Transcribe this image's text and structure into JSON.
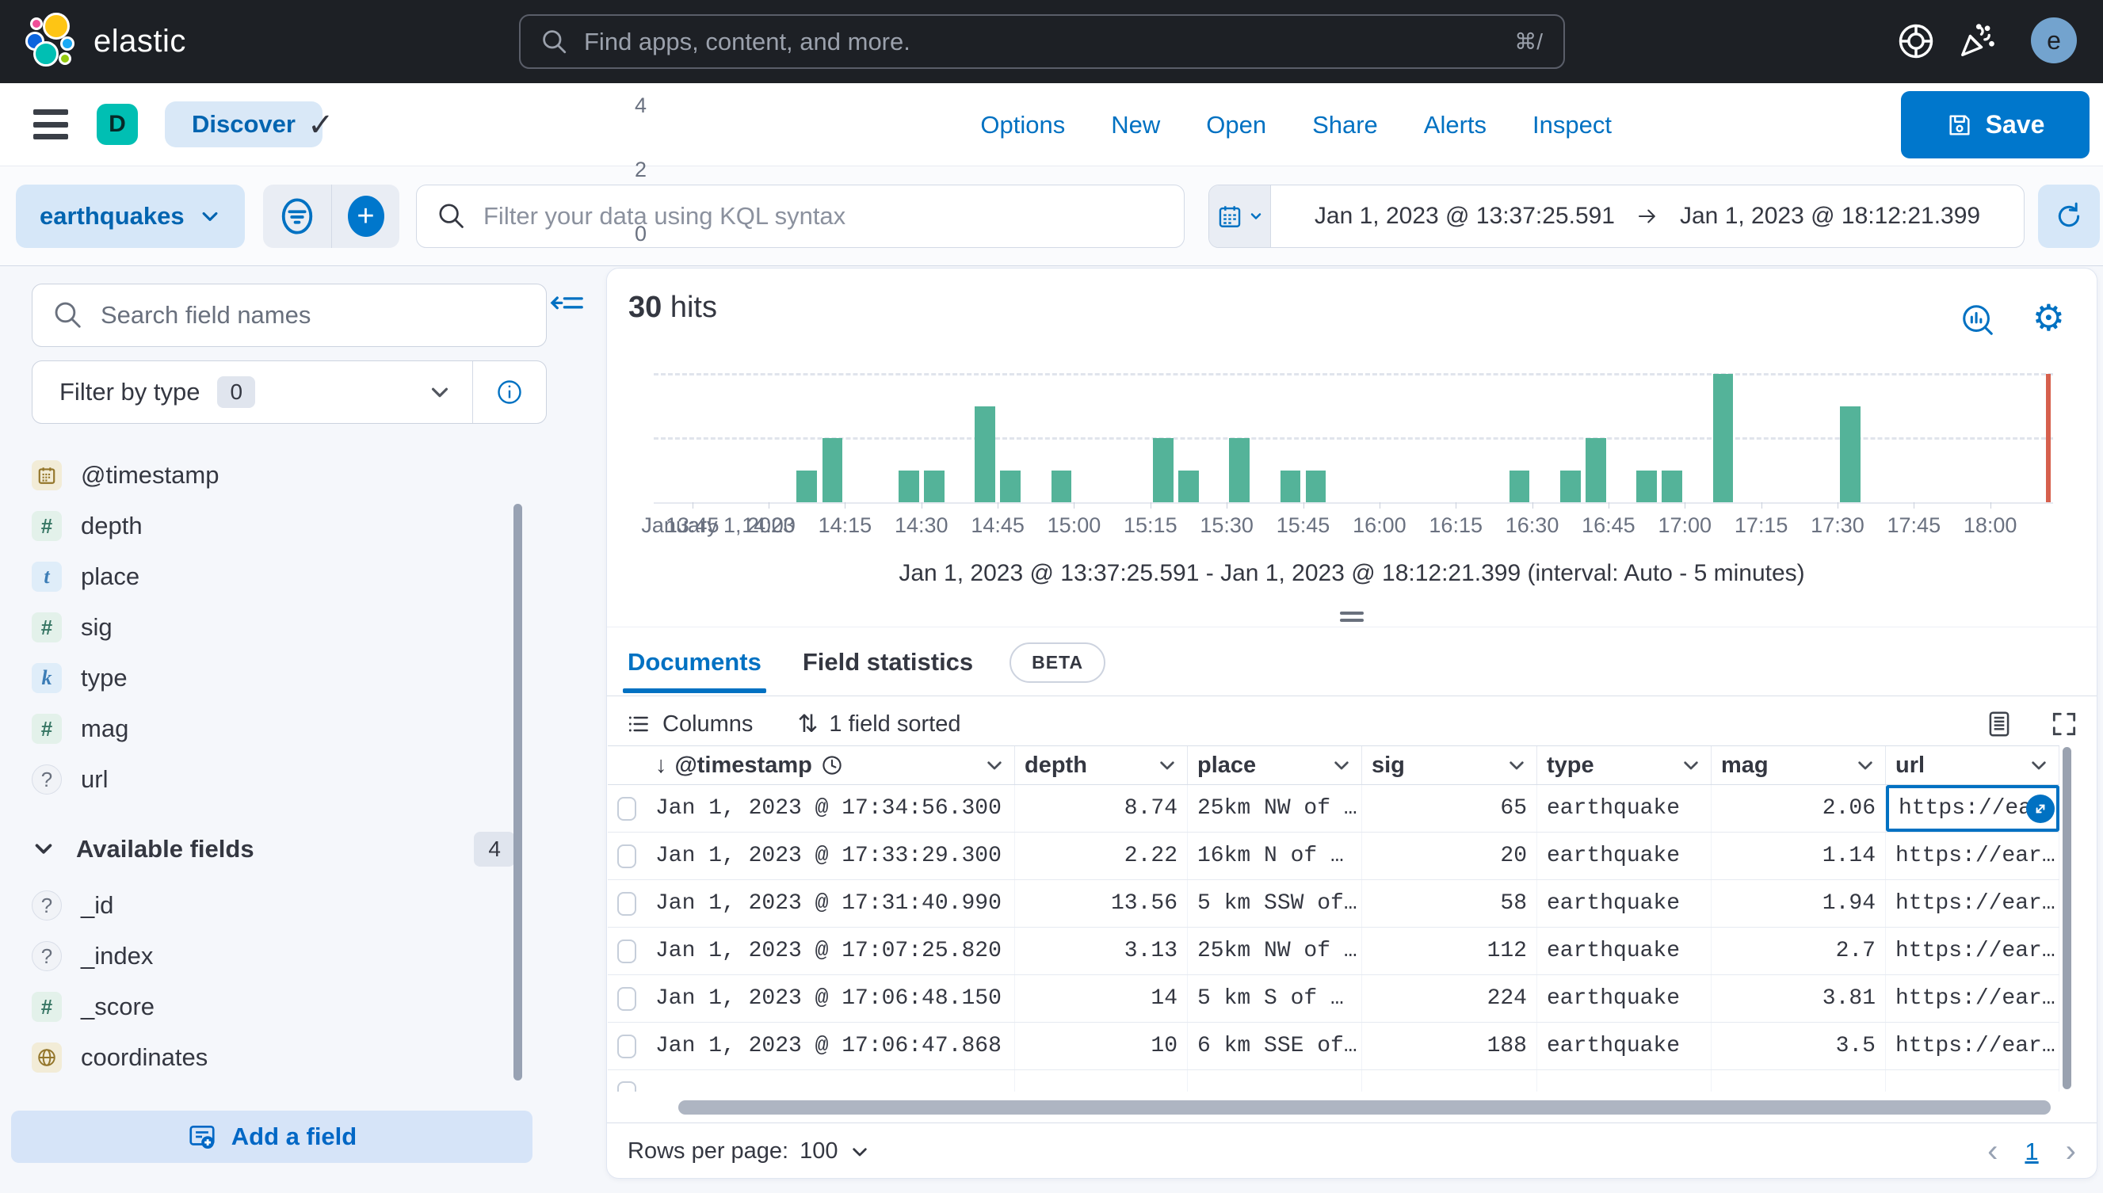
{
  "colors": {
    "accent_blue": "#0071C2",
    "save_button_blue": "#0077CC",
    "annotation_pink": "#F5407D",
    "histogram_bar_teal": "#54B399",
    "end_marker_red": "#D6604D",
    "space_badge_teal": "#00BFB3",
    "avatar_blue": "#73A3CE",
    "topbar_dark": "#1D2025"
  },
  "topbar": {
    "brand": "elastic",
    "search_placeholder": "Find apps, content, and more.",
    "search_shortcut": "⌘/",
    "avatar_initial": "e"
  },
  "nav": {
    "space_badge": "D",
    "breadcrumb": "Discover",
    "links": [
      "Options",
      "New",
      "Open",
      "Share",
      "Alerts",
      "Inspect"
    ],
    "save_label": "Save"
  },
  "filter_bar": {
    "data_view": "earthquakes",
    "kql_placeholder": "Filter your data using KQL syntax",
    "date_from": "Jan 1, 2023 @ 13:37:25.591",
    "date_to": "Jan 1, 2023 @ 18:12:21.399"
  },
  "sidebar": {
    "search_placeholder": "Search field names",
    "filter_by_type_label": "Filter by type",
    "filter_by_type_count": "0",
    "selected_fields": [
      {
        "name": "@timestamp",
        "type": "date"
      },
      {
        "name": "depth",
        "type": "number"
      },
      {
        "name": "place",
        "type": "text"
      },
      {
        "name": "sig",
        "type": "number"
      },
      {
        "name": "type",
        "type": "keyword"
      },
      {
        "name": "mag",
        "type": "number"
      },
      {
        "name": "url",
        "type": "unknown"
      }
    ],
    "available_header": "Available fields",
    "available_count": "4",
    "available_fields": [
      {
        "name": "_id",
        "type": "unknown"
      },
      {
        "name": "_index",
        "type": "unknown"
      },
      {
        "name": "_score",
        "type": "number"
      },
      {
        "name": "coordinates",
        "type": "geo"
      }
    ],
    "add_field_label": "Add a field"
  },
  "main": {
    "hits_value": "30",
    "hits_label": "hits",
    "chart_caption": "Jan 1, 2023 @ 13:37:25.591 - Jan 1, 2023 @ 18:12:21.399 (interval: Auto - 5 minutes)",
    "tabs": [
      {
        "label": "Documents",
        "active": true
      },
      {
        "label": "Field statistics",
        "active": false,
        "badge": "BETA"
      }
    ],
    "toolbar": {
      "columns_label": "Columns",
      "sorted_label": "1 field sorted"
    },
    "footer": {
      "rows_per_page_label": "Rows per page:",
      "rows_per_page_value": "100",
      "page": "1"
    }
  },
  "chart_data": {
    "type": "bar",
    "title": "",
    "xlabel": "",
    "ylabel": "",
    "date_label": "January 1, 2023",
    "domain": [
      "13:37:25",
      "18:12:21"
    ],
    "interval_minutes": 5,
    "ylim": [
      0,
      4
    ],
    "y_ticks": [
      0,
      2,
      4
    ],
    "x_ticks": [
      "13:45",
      "14:00",
      "14:15",
      "14:30",
      "14:45",
      "15:00",
      "15:15",
      "15:30",
      "15:45",
      "16:00",
      "16:15",
      "16:30",
      "16:45",
      "17:00",
      "17:15",
      "17:30",
      "17:45",
      "18:00"
    ],
    "bars": [
      {
        "time": "14:05",
        "count": 1
      },
      {
        "time": "14:10",
        "count": 2
      },
      {
        "time": "14:25",
        "count": 1
      },
      {
        "time": "14:30",
        "count": 1
      },
      {
        "time": "14:40",
        "count": 3
      },
      {
        "time": "14:45",
        "count": 1
      },
      {
        "time": "14:55",
        "count": 1
      },
      {
        "time": "15:15",
        "count": 2
      },
      {
        "time": "15:20",
        "count": 1
      },
      {
        "time": "15:30",
        "count": 2
      },
      {
        "time": "15:40",
        "count": 1
      },
      {
        "time": "15:45",
        "count": 1
      },
      {
        "time": "16:25",
        "count": 1
      },
      {
        "time": "16:35",
        "count": 1
      },
      {
        "time": "16:40",
        "count": 2
      },
      {
        "time": "16:50",
        "count": 1
      },
      {
        "time": "16:55",
        "count": 1
      },
      {
        "time": "17:05",
        "count": 4
      },
      {
        "time": "17:30",
        "count": 3
      }
    ],
    "end_marker_time": "18:11",
    "legend": false,
    "grid": "dashed-horizontal"
  },
  "table": {
    "columns": [
      {
        "key": "timestamp",
        "label": "@timestamp",
        "sorted": "desc",
        "clock_icon": true,
        "numeric": false
      },
      {
        "key": "depth",
        "label": "depth",
        "numeric": true
      },
      {
        "key": "place",
        "label": "place",
        "numeric": false
      },
      {
        "key": "sig",
        "label": "sig",
        "numeric": true
      },
      {
        "key": "type",
        "label": "type",
        "numeric": false
      },
      {
        "key": "mag",
        "label": "mag",
        "numeric": true
      },
      {
        "key": "url",
        "label": "url",
        "numeric": false
      }
    ],
    "rows": [
      {
        "timestamp": "Jan 1, 2023 @ 17:34:56.300",
        "depth": "8.74",
        "place": "25km NW of …",
        "sig": "65",
        "type": "earthquake",
        "mag": "2.06",
        "url": "https://ea"
      },
      {
        "timestamp": "Jan 1, 2023 @ 17:33:29.300",
        "depth": "2.22",
        "place": "16km N of …",
        "sig": "20",
        "type": "earthquake",
        "mag": "1.14",
        "url": "https://ear…"
      },
      {
        "timestamp": "Jan 1, 2023 @ 17:31:40.990",
        "depth": "13.56",
        "place": "5 km SSW of…",
        "sig": "58",
        "type": "earthquake",
        "mag": "1.94",
        "url": "https://ear…"
      },
      {
        "timestamp": "Jan 1, 2023 @ 17:07:25.820",
        "depth": "3.13",
        "place": "25km NW of …",
        "sig": "112",
        "type": "earthquake",
        "mag": "2.7",
        "url": "https://ear…"
      },
      {
        "timestamp": "Jan 1, 2023 @ 17:06:48.150",
        "depth": "14",
        "place": "5 km S of …",
        "sig": "224",
        "type": "earthquake",
        "mag": "3.81",
        "url": "https://ear…"
      },
      {
        "timestamp": "Jan 1, 2023 @ 17:06:47.868",
        "depth": "10",
        "place": "6 km SSE of…",
        "sig": "188",
        "type": "earthquake",
        "mag": "3.5",
        "url": "https://ear…"
      }
    ],
    "selected_cell": {
      "row": 0,
      "column": "url"
    }
  }
}
